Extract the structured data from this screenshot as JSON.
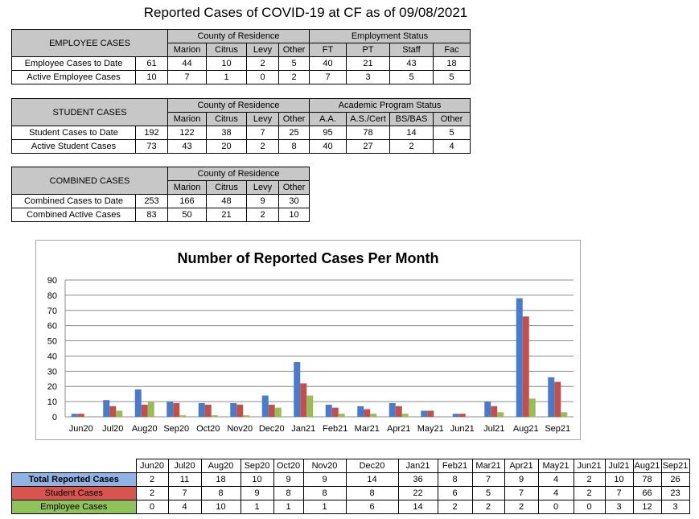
{
  "page_title": "Reported Cases of COVID-19 at CF as of 09/08/2021",
  "employee_table": {
    "header": "EMPLOYEE CASES",
    "group1": "County of Residence",
    "group2": "Employment Status",
    "subheaders": [
      "Marion",
      "Citrus",
      "Levy",
      "Other",
      "FT",
      "PT",
      "Staff",
      "Fac"
    ],
    "rows": [
      {
        "label": "Employee Cases to Date",
        "total": "61",
        "cells": [
          "44",
          "10",
          "2",
          "5",
          "40",
          "21",
          "43",
          "18"
        ]
      },
      {
        "label": "Active Employee Cases",
        "total": "10",
        "cells": [
          "7",
          "1",
          "0",
          "2",
          "7",
          "3",
          "5",
          "5"
        ]
      }
    ]
  },
  "student_table": {
    "header": "STUDENT CASES",
    "group1": "County of Residence",
    "group2": "Academic Program Status",
    "subheaders": [
      "Marion",
      "Citrus",
      "Levy",
      "Other",
      "A.A.",
      "A.S./Cert",
      "BS/BAS",
      "Other"
    ],
    "rows": [
      {
        "label": "Student Cases to Date",
        "total": "192",
        "cells": [
          "122",
          "38",
          "7",
          "25",
          "95",
          "78",
          "14",
          "5"
        ]
      },
      {
        "label": "Active Student Cases",
        "total": "73",
        "cells": [
          "43",
          "20",
          "2",
          "8",
          "40",
          "27",
          "2",
          "4"
        ]
      }
    ]
  },
  "combined_table": {
    "header": "COMBINED CASES",
    "group1": "County of Residence",
    "subheaders": [
      "Marion",
      "Citrus",
      "Levy",
      "Other"
    ],
    "rows": [
      {
        "label": "Combined Cases to Date",
        "total": "253",
        "cells": [
          "166",
          "48",
          "9",
          "30"
        ]
      },
      {
        "label": "Combined Active Cases",
        "total": "83",
        "cells": [
          "50",
          "21",
          "2",
          "10"
        ]
      }
    ]
  },
  "chart_data": {
    "type": "bar",
    "title": "Number of Reported Cases Per Month",
    "xlabel": "",
    "ylabel": "",
    "ylim": [
      0,
      90
    ],
    "yticks": [
      0,
      10,
      20,
      30,
      40,
      50,
      60,
      70,
      80,
      90
    ],
    "grid": true,
    "categories": [
      "Jun20",
      "Jul20",
      "Aug20",
      "Sep20",
      "Oct20",
      "Nov20",
      "Dec20",
      "Jan21",
      "Feb21",
      "Mar21",
      "Apr21",
      "May21",
      "Jun21",
      "Jul21",
      "Aug21",
      "Sep21"
    ],
    "series": [
      {
        "name": "Total Reported Cases",
        "color": "#4a7bc8",
        "values": [
          2,
          11,
          18,
          10,
          9,
          9,
          14,
          36,
          8,
          7,
          9,
          4,
          2,
          10,
          78,
          26
        ]
      },
      {
        "name": "Student Cases",
        "color": "#c0504d",
        "values": [
          2,
          7,
          8,
          9,
          8,
          8,
          8,
          22,
          6,
          5,
          7,
          4,
          2,
          7,
          66,
          23
        ]
      },
      {
        "name": "Employee Cases",
        "color": "#9bbb59",
        "values": [
          0,
          4,
          10,
          1,
          1,
          1,
          6,
          14,
          2,
          2,
          2,
          0,
          0,
          3,
          12,
          3
        ]
      }
    ]
  },
  "colors": {
    "total": "#4a7bc8",
    "student": "#c0504d",
    "employee": "#9bbb59",
    "header_gray": "#c7c7c7"
  }
}
